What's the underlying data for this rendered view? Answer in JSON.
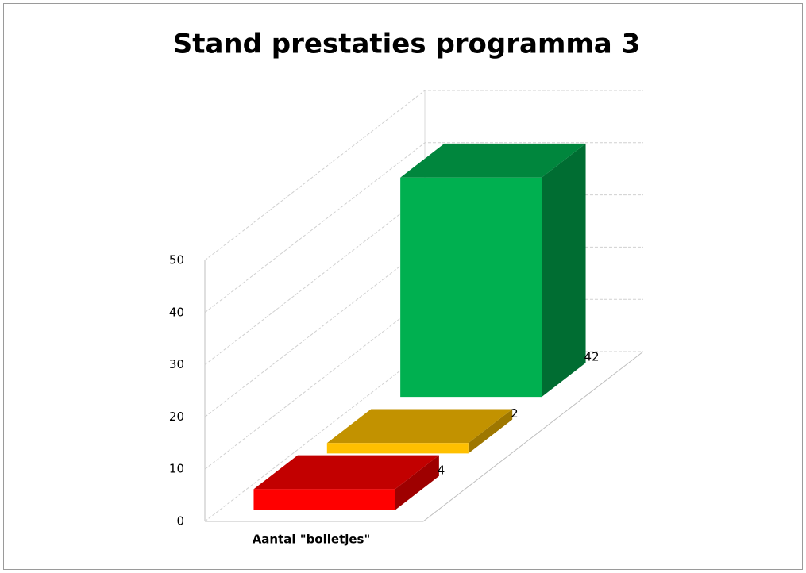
{
  "chart_data": {
    "type": "bar3d",
    "title": "Stand prestaties programma 3",
    "categories": [
      "Aantal \"bolletjes\""
    ],
    "series": [
      {
        "color": "#ff0000",
        "values": [
          4
        ]
      },
      {
        "color": "#ffc000",
        "values": [
          2
        ]
      },
      {
        "color": "#00b050",
        "values": [
          42
        ]
      }
    ],
    "ylim": [
      0,
      50
    ],
    "yticks": [
      0,
      10,
      20,
      30,
      40,
      50
    ],
    "grid": true
  }
}
